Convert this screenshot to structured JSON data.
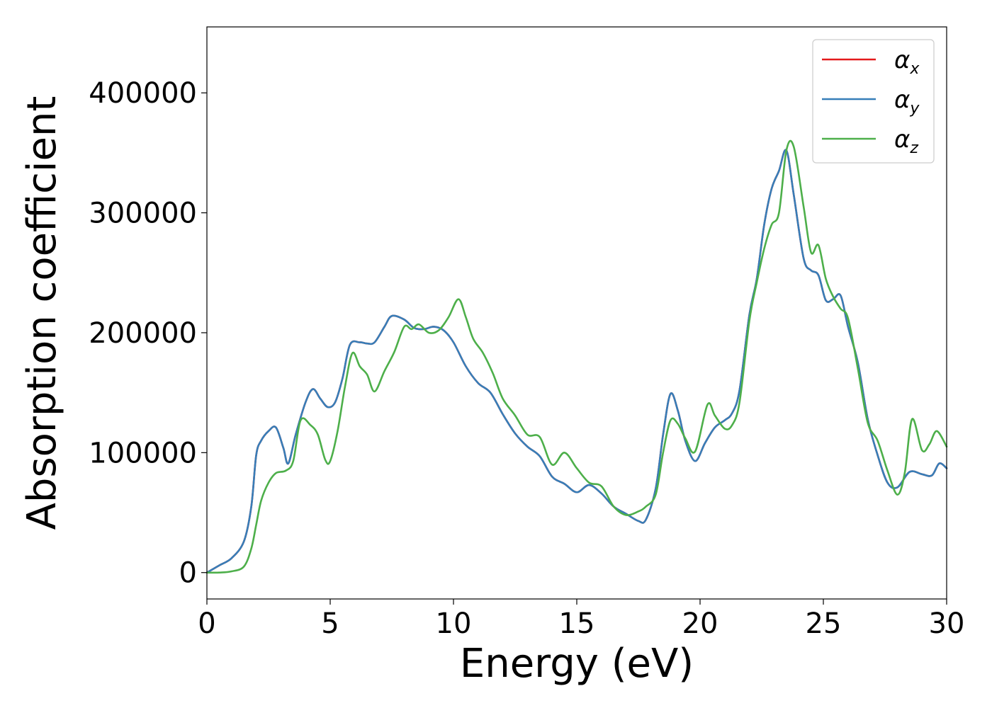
{
  "chart_data": {
    "type": "line",
    "xlabel": "Energy (eV)",
    "ylabel": "Absorption coefficient",
    "xlim": [
      0,
      30
    ],
    "ylim": [
      -22000,
      455000
    ],
    "xticks": [
      "0",
      "5",
      "10",
      "15",
      "20",
      "25",
      "30"
    ],
    "yticks": [
      "0",
      "100000",
      "200000",
      "300000",
      "400000"
    ],
    "grid": false,
    "legend_position": "top-right",
    "series": [
      {
        "name": "αx",
        "legend_base": "α",
        "legend_sub": "x",
        "color": "#e41a1c",
        "x": [
          0,
          0.5,
          1,
          1.5,
          1.8,
          2,
          2.2,
          2.5,
          2.8,
          3.1,
          3.3,
          3.6,
          4,
          4.3,
          4.6,
          4.9,
          5.2,
          5.5,
          5.8,
          6.2,
          6.5,
          6.8,
          7.2,
          7.5,
          8,
          8.4,
          8.8,
          9.2,
          9.6,
          10,
          10.5,
          11,
          11.5,
          12,
          12.5,
          13,
          13.5,
          14,
          14.5,
          15,
          15.5,
          16,
          16.5,
          17,
          17.5,
          17.8,
          18.2,
          18.5,
          18.8,
          19.1,
          19.4,
          19.8,
          20.2,
          20.6,
          21,
          21.3,
          21.6,
          22,
          22.3,
          22.6,
          22.9,
          23.2,
          23.5,
          23.8,
          24.2,
          24.5,
          24.8,
          25.1,
          25.4,
          25.7,
          26,
          26.4,
          26.8,
          27.2,
          27.6,
          28,
          28.5,
          29,
          29.4,
          29.7,
          30
        ],
        "y": [
          0,
          6000,
          12000,
          26000,
          55000,
          98000,
          110000,
          118000,
          121000,
          104000,
          91000,
          115000,
          142000,
          153000,
          145000,
          138000,
          142000,
          162000,
          190000,
          192000,
          191000,
          192000,
          205000,
          214000,
          211000,
          204000,
          203000,
          205000,
          202000,
          192000,
          172000,
          158000,
          150000,
          132000,
          116000,
          105000,
          97000,
          80000,
          74000,
          67000,
          73000,
          66000,
          55000,
          49000,
          43000,
          44000,
          70000,
          115000,
          149000,
          135000,
          110000,
          93000,
          108000,
          121000,
          127000,
          133000,
          152000,
          215000,
          245000,
          290000,
          320000,
          335000,
          352000,
          315000,
          262000,
          252000,
          248000,
          227000,
          228000,
          231000,
          205000,
          175000,
          128000,
          98000,
          75000,
          71000,
          84000,
          82000,
          81000,
          91000,
          87000
        ]
      },
      {
        "name": "αy",
        "legend_base": "α",
        "legend_sub": "y",
        "color": "#377eb8",
        "x": [
          0,
          0.5,
          1,
          1.5,
          1.8,
          2,
          2.2,
          2.5,
          2.8,
          3.1,
          3.3,
          3.6,
          4,
          4.3,
          4.6,
          4.9,
          5.2,
          5.5,
          5.8,
          6.2,
          6.5,
          6.8,
          7.2,
          7.5,
          8,
          8.4,
          8.8,
          9.2,
          9.6,
          10,
          10.5,
          11,
          11.5,
          12,
          12.5,
          13,
          13.5,
          14,
          14.5,
          15,
          15.5,
          16,
          16.5,
          17,
          17.5,
          17.8,
          18.2,
          18.5,
          18.8,
          19.1,
          19.4,
          19.8,
          20.2,
          20.6,
          21,
          21.3,
          21.6,
          22,
          22.3,
          22.6,
          22.9,
          23.2,
          23.5,
          23.8,
          24.2,
          24.5,
          24.8,
          25.1,
          25.4,
          25.7,
          26,
          26.4,
          26.8,
          27.2,
          27.6,
          28,
          28.5,
          29,
          29.4,
          29.7,
          30
        ],
        "y": [
          0,
          6000,
          12000,
          26000,
          55000,
          98000,
          110000,
          118000,
          121000,
          104000,
          91000,
          115000,
          142000,
          153000,
          145000,
          138000,
          142000,
          162000,
          190000,
          192000,
          191000,
          192000,
          205000,
          214000,
          211000,
          204000,
          203000,
          205000,
          202000,
          192000,
          172000,
          158000,
          150000,
          132000,
          116000,
          105000,
          97000,
          80000,
          74000,
          67000,
          73000,
          66000,
          55000,
          49000,
          43000,
          44000,
          70000,
          115000,
          149000,
          135000,
          110000,
          93000,
          108000,
          121000,
          127000,
          133000,
          152000,
          215000,
          245000,
          290000,
          320000,
          335000,
          352000,
          315000,
          262000,
          252000,
          248000,
          227000,
          228000,
          231000,
          205000,
          175000,
          128000,
          98000,
          75000,
          71000,
          84000,
          82000,
          81000,
          91000,
          87000
        ]
      },
      {
        "name": "αz",
        "legend_base": "α",
        "legend_sub": "z",
        "color": "#4daf4a",
        "x": [
          0,
          0.5,
          1,
          1.5,
          1.8,
          2,
          2.2,
          2.5,
          2.8,
          3.2,
          3.5,
          3.8,
          4.2,
          4.5,
          4.8,
          5,
          5.3,
          5.6,
          5.9,
          6.2,
          6.5,
          6.8,
          7.2,
          7.6,
          8,
          8.3,
          8.6,
          9,
          9.4,
          9.8,
          10.2,
          10.5,
          10.8,
          11.2,
          11.6,
          12,
          12.5,
          13,
          13.5,
          14,
          14.5,
          15,
          15.5,
          16,
          16.5,
          17,
          17.5,
          17.8,
          18.2,
          18.5,
          18.8,
          19.1,
          19.4,
          19.8,
          20.3,
          20.6,
          21,
          21.3,
          21.6,
          22,
          22.3,
          22.6,
          22.9,
          23.2,
          23.5,
          23.8,
          24.2,
          24.5,
          24.8,
          25.1,
          25.4,
          25.7,
          26,
          26.4,
          26.8,
          27.2,
          27.6,
          28,
          28.3,
          28.6,
          29,
          29.3,
          29.6,
          30
        ],
        "y": [
          0,
          0,
          1000,
          5000,
          20000,
          40000,
          60000,
          75000,
          83000,
          85000,
          93000,
          127000,
          123000,
          115000,
          94000,
          93000,
          118000,
          155000,
          183000,
          172000,
          165000,
          151000,
          168000,
          184000,
          205000,
          203000,
          207000,
          200000,
          202000,
          213000,
          228000,
          213000,
          195000,
          183000,
          166000,
          145000,
          131000,
          115000,
          113000,
          90000,
          100000,
          87000,
          75000,
          72000,
          55000,
          48000,
          51000,
          55000,
          65000,
          100000,
          127000,
          124000,
          112000,
          101000,
          140000,
          131000,
          120000,
          123000,
          142000,
          210000,
          242000,
          270000,
          290000,
          300000,
          352000,
          355000,
          305000,
          267000,
          273000,
          245000,
          230000,
          220000,
          212000,
          170000,
          125000,
          110000,
          85000,
          65000,
          83000,
          128000,
          102000,
          107000,
          118000,
          105000
        ]
      }
    ]
  }
}
